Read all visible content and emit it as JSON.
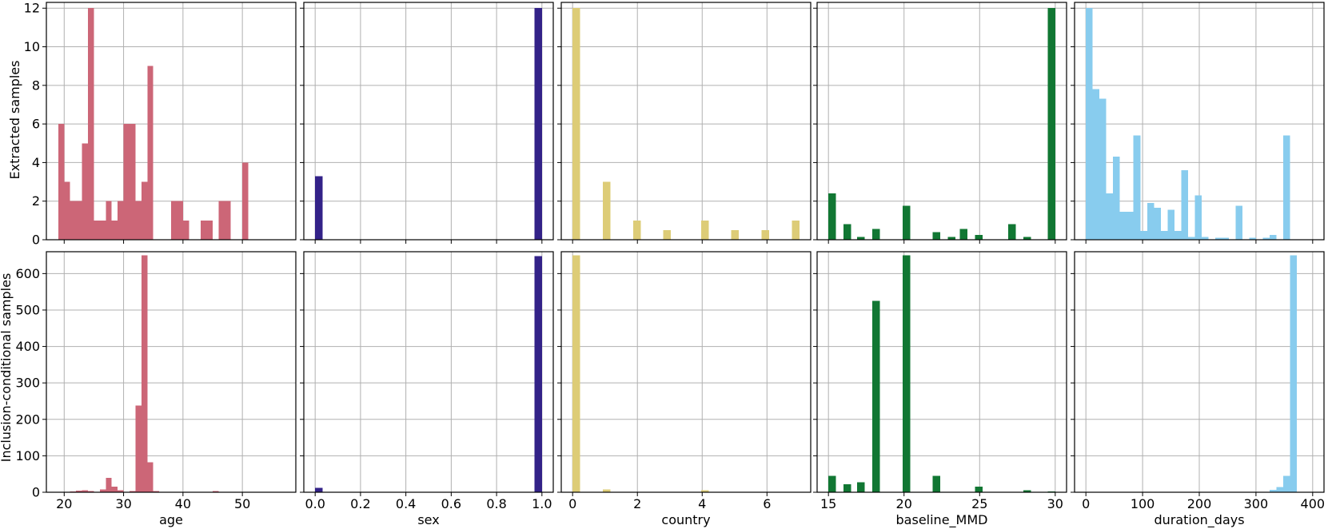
{
  "chart_data": [
    {
      "type": "bar",
      "row": "Extracted samples",
      "xlabel": "age",
      "color": "#cc6677",
      "xlim": [
        17,
        59
      ],
      "ylim": [
        0,
        12.3
      ],
      "xticks": [
        20,
        30,
        40,
        50
      ],
      "yticks": [
        0,
        2,
        4,
        6,
        8,
        10,
        12
      ],
      "bars": [
        {
          "x0": 19,
          "x1": 20,
          "y": 6
        },
        {
          "x0": 20,
          "x1": 21,
          "y": 3
        },
        {
          "x0": 21,
          "x1": 22,
          "y": 2
        },
        {
          "x0": 22,
          "x1": 23,
          "y": 2
        },
        {
          "x0": 23,
          "x1": 24,
          "y": 5
        },
        {
          "x0": 24,
          "x1": 25,
          "y": 12
        },
        {
          "x0": 25,
          "x1": 26,
          "y": 1
        },
        {
          "x0": 26,
          "x1": 27,
          "y": 1
        },
        {
          "x0": 27,
          "x1": 28,
          "y": 2
        },
        {
          "x0": 28,
          "x1": 29,
          "y": 1
        },
        {
          "x0": 29,
          "x1": 30,
          "y": 2
        },
        {
          "x0": 30,
          "x1": 31,
          "y": 6
        },
        {
          "x0": 31,
          "x1": 32,
          "y": 6
        },
        {
          "x0": 32,
          "x1": 33,
          "y": 2
        },
        {
          "x0": 33,
          "x1": 34,
          "y": 3
        },
        {
          "x0": 34,
          "x1": 35,
          "y": 9
        },
        {
          "x0": 38,
          "x1": 39,
          "y": 2
        },
        {
          "x0": 39,
          "x1": 40,
          "y": 2
        },
        {
          "x0": 40,
          "x1": 41,
          "y": 1
        },
        {
          "x0": 43,
          "x1": 45,
          "y": 1
        },
        {
          "x0": 46,
          "x1": 48,
          "y": 2
        },
        {
          "x0": 50,
          "x1": 51,
          "y": 4
        }
      ]
    },
    {
      "type": "bar",
      "row": "Extracted samples",
      "xlabel": "sex",
      "color": "#332288",
      "xlim": [
        -0.05,
        1.05
      ],
      "ylim": [
        0,
        12.3
      ],
      "xticks": [
        0.0,
        0.2,
        0.4,
        0.6,
        0.8,
        1.0
      ],
      "yticks": [
        0,
        2,
        4,
        6,
        8,
        10,
        12
      ],
      "bars": [
        {
          "x0": 0,
          "x1": 0.033,
          "y": 3.3
        },
        {
          "x0": 0.967,
          "x1": 1.0,
          "y": 12
        }
      ]
    },
    {
      "type": "bar",
      "row": "Extracted samples",
      "xlabel": "country",
      "color": "#ddcc77",
      "xlim": [
        -0.35,
        7.35
      ],
      "ylim": [
        0,
        12.3
      ],
      "xticks": [
        0,
        2,
        4,
        6
      ],
      "yticks": [
        0,
        2,
        4,
        6,
        8,
        10,
        12
      ],
      "bars": [
        {
          "x0": 0,
          "x1": 0.233,
          "y": 12
        },
        {
          "x0": 0.933,
          "x1": 1.167,
          "y": 3
        },
        {
          "x0": 1.867,
          "x1": 2.1,
          "y": 1
        },
        {
          "x0": 2.8,
          "x1": 3.033,
          "y": 0.5
        },
        {
          "x0": 3.967,
          "x1": 4.2,
          "y": 1
        },
        {
          "x0": 4.9,
          "x1": 5.133,
          "y": 0.5
        },
        {
          "x0": 5.833,
          "x1": 6.067,
          "y": 0.5
        },
        {
          "x0": 6.767,
          "x1": 7.0,
          "y": 1
        }
      ]
    },
    {
      "type": "bar",
      "row": "Extracted samples",
      "xlabel": "baseline_MMD",
      "color": "#117733",
      "xlim": [
        14.25,
        30.75
      ],
      "ylim": [
        0,
        12.3
      ],
      "xticks": [
        15,
        20,
        25,
        30
      ],
      "yticks": [
        0,
        2,
        4,
        6,
        8,
        10,
        12
      ],
      "bars": [
        {
          "x0": 15,
          "x1": 15.5,
          "y": 2.4
        },
        {
          "x0": 16,
          "x1": 16.5,
          "y": 0.8
        },
        {
          "x0": 16.9,
          "x1": 17.4,
          "y": 0.15
        },
        {
          "x0": 17.9,
          "x1": 18.4,
          "y": 0.55
        },
        {
          "x0": 19.9,
          "x1": 20.4,
          "y": 1.75
        },
        {
          "x0": 21.9,
          "x1": 22.4,
          "y": 0.4
        },
        {
          "x0": 22.9,
          "x1": 23.4,
          "y": 0.15
        },
        {
          "x0": 23.7,
          "x1": 24.2,
          "y": 0.55
        },
        {
          "x0": 24.7,
          "x1": 25.2,
          "y": 0.25
        },
        {
          "x0": 26.9,
          "x1": 27.4,
          "y": 0.8
        },
        {
          "x0": 27.9,
          "x1": 28.4,
          "y": 0.15
        },
        {
          "x0": 29.5,
          "x1": 30,
          "y": 12
        }
      ]
    },
    {
      "type": "bar",
      "row": "Extracted samples",
      "xlabel": "duration_days",
      "color": "#88ccee",
      "xlim": [
        -20,
        420
      ],
      "ylim": [
        0,
        12.3
      ],
      "xticks": [
        0,
        100,
        200,
        300,
        400
      ],
      "yticks": [
        0,
        2,
        4,
        6,
        8,
        10,
        12
      ],
      "bars": [
        {
          "x0": 0,
          "x1": 12,
          "y": 12
        },
        {
          "x0": 12,
          "x1": 24,
          "y": 7.8
        },
        {
          "x0": 24,
          "x1": 36,
          "y": 7.3
        },
        {
          "x0": 36,
          "x1": 48,
          "y": 2.4
        },
        {
          "x0": 48,
          "x1": 60,
          "y": 4.3
        },
        {
          "x0": 60,
          "x1": 72,
          "y": 1.45
        },
        {
          "x0": 72,
          "x1": 84,
          "y": 1.45
        },
        {
          "x0": 84,
          "x1": 96,
          "y": 5.4
        },
        {
          "x0": 96,
          "x1": 108,
          "y": 0.45
        },
        {
          "x0": 108,
          "x1": 120,
          "y": 1.9
        },
        {
          "x0": 120,
          "x1": 132,
          "y": 1.65
        },
        {
          "x0": 132,
          "x1": 144,
          "y": 0.45
        },
        {
          "x0": 144,
          "x1": 156,
          "y": 1.55
        },
        {
          "x0": 156,
          "x1": 168,
          "y": 0.45
        },
        {
          "x0": 168,
          "x1": 180,
          "y": 3.6
        },
        {
          "x0": 180,
          "x1": 192,
          "y": 0.15
        },
        {
          "x0": 192,
          "x1": 204,
          "y": 2.3
        },
        {
          "x0": 204,
          "x1": 216,
          "y": 0.15
        },
        {
          "x0": 228,
          "x1": 240,
          "y": 0.1
        },
        {
          "x0": 240,
          "x1": 252,
          "y": 0.1
        },
        {
          "x0": 264,
          "x1": 276,
          "y": 1.75
        },
        {
          "x0": 288,
          "x1": 300,
          "y": 0.1
        },
        {
          "x0": 312,
          "x1": 324,
          "y": 0.1
        },
        {
          "x0": 324,
          "x1": 336,
          "y": 0.25
        },
        {
          "x0": 348,
          "x1": 360,
          "y": 5.4
        }
      ]
    },
    {
      "type": "bar",
      "row": "Inclusion-conditional samples",
      "xlabel": "age",
      "color": "#cc6677",
      "xlim": [
        17,
        59
      ],
      "ylim": [
        0,
        660
      ],
      "xticks": [
        20,
        30,
        40,
        50
      ],
      "yticks": [
        0,
        100,
        200,
        300,
        400,
        500,
        600
      ],
      "bars": [
        {
          "x0": 21,
          "x1": 22,
          "y": 2
        },
        {
          "x0": 22,
          "x1": 23,
          "y": 4
        },
        {
          "x0": 23,
          "x1": 24,
          "y": 5
        },
        {
          "x0": 24,
          "x1": 25,
          "y": 3
        },
        {
          "x0": 26,
          "x1": 27,
          "y": 8
        },
        {
          "x0": 27,
          "x1": 28,
          "y": 40
        },
        {
          "x0": 28,
          "x1": 29,
          "y": 15
        },
        {
          "x0": 29,
          "x1": 30,
          "y": 5
        },
        {
          "x0": 30,
          "x1": 31,
          "y": 1
        },
        {
          "x0": 31,
          "x1": 32,
          "y": 3
        },
        {
          "x0": 32,
          "x1": 33,
          "y": 238
        },
        {
          "x0": 33,
          "x1": 34,
          "y": 650
        },
        {
          "x0": 34,
          "x1": 35,
          "y": 82
        },
        {
          "x0": 35,
          "x1": 36,
          "y": 3
        },
        {
          "x0": 40,
          "x1": 41,
          "y": 1
        },
        {
          "x0": 42,
          "x1": 43,
          "y": 1
        },
        {
          "x0": 45,
          "x1": 46,
          "y": 3
        },
        {
          "x0": 52,
          "x1": 53,
          "y": 1
        }
      ]
    },
    {
      "type": "bar",
      "row": "Inclusion-conditional samples",
      "xlabel": "sex",
      "color": "#332288",
      "xlim": [
        -0.05,
        1.05
      ],
      "ylim": [
        0,
        660
      ],
      "xticks": [
        0.0,
        0.2,
        0.4,
        0.6,
        0.8,
        1.0
      ],
      "yticks": [
        0,
        100,
        200,
        300,
        400,
        500,
        600
      ],
      "bars": [
        {
          "x0": 0,
          "x1": 0.033,
          "y": 12
        },
        {
          "x0": 0.033,
          "x1": 0.066,
          "y": 1
        },
        {
          "x0": 0.967,
          "x1": 1.0,
          "y": 648
        }
      ]
    },
    {
      "type": "bar",
      "row": "Inclusion-conditional samples",
      "xlabel": "country",
      "color": "#ddcc77",
      "xlim": [
        -0.35,
        7.35
      ],
      "ylim": [
        0,
        660
      ],
      "xticks": [
        0,
        2,
        4,
        6
      ],
      "yticks": [
        0,
        100,
        200,
        300,
        400,
        500,
        600
      ],
      "bars": [
        {
          "x0": 0,
          "x1": 0.233,
          "y": 650
        },
        {
          "x0": 0.933,
          "x1": 1.167,
          "y": 8
        },
        {
          "x0": 3.967,
          "x1": 4.2,
          "y": 5
        },
        {
          "x0": 4.9,
          "x1": 5.133,
          "y": 1
        }
      ]
    },
    {
      "type": "bar",
      "row": "Inclusion-conditional samples",
      "xlabel": "baseline_MMD",
      "color": "#117733",
      "xlim": [
        14.25,
        30.75
      ],
      "ylim": [
        0,
        660
      ],
      "xticks": [
        15,
        20,
        25,
        30
      ],
      "yticks": [
        0,
        100,
        200,
        300,
        400,
        500,
        600
      ],
      "bars": [
        {
          "x0": 15,
          "x1": 15.5,
          "y": 45
        },
        {
          "x0": 16,
          "x1": 16.5,
          "y": 22
        },
        {
          "x0": 16.9,
          "x1": 17.4,
          "y": 27
        },
        {
          "x0": 17.9,
          "x1": 18.4,
          "y": 525
        },
        {
          "x0": 19.9,
          "x1": 20.4,
          "y": 650
        },
        {
          "x0": 21.9,
          "x1": 22.4,
          "y": 45
        },
        {
          "x0": 24.7,
          "x1": 25.2,
          "y": 15
        },
        {
          "x0": 27.9,
          "x1": 28.4,
          "y": 5
        },
        {
          "x0": 29.5,
          "x1": 30,
          "y": 2
        }
      ]
    },
    {
      "type": "bar",
      "row": "Inclusion-conditional samples",
      "xlabel": "duration_days",
      "color": "#88ccee",
      "xlim": [
        -20,
        420
      ],
      "ylim": [
        0,
        660
      ],
      "xticks": [
        0,
        100,
        200,
        300,
        400
      ],
      "yticks": [
        0,
        100,
        200,
        300,
        400,
        500,
        600
      ],
      "bars": [
        {
          "x0": 168,
          "x1": 180,
          "y": 1
        },
        {
          "x0": 324,
          "x1": 336,
          "y": 7
        },
        {
          "x0": 336,
          "x1": 348,
          "y": 14
        },
        {
          "x0": 348,
          "x1": 360,
          "y": 45
        },
        {
          "x0": 360,
          "x1": 372,
          "y": 650
        }
      ]
    }
  ]
}
